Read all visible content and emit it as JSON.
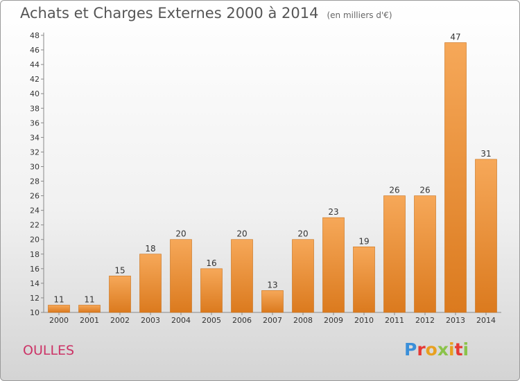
{
  "header": {
    "title": "Achats et Charges Externes 2000 à 2014",
    "unit": "(en milliers d'€)"
  },
  "footer": {
    "commune": "OULLES",
    "logo_text": "Proxiti"
  },
  "colors": {
    "bar_top": "#f6a859",
    "bar_bottom": "#db7a1e",
    "axis": "#888888",
    "label": "#333333"
  },
  "chart_data": {
    "type": "bar",
    "title": "Achats et Charges Externes 2000 à 2014",
    "categories": [
      "2000",
      "2001",
      "2002",
      "2003",
      "2004",
      "2005",
      "2006",
      "2007",
      "2008",
      "2009",
      "2010",
      "2011",
      "2012",
      "2013",
      "2014"
    ],
    "values": [
      11,
      11,
      15,
      18,
      20,
      16,
      20,
      13,
      20,
      23,
      19,
      26,
      26,
      47,
      31
    ],
    "xlabel": "",
    "ylabel": "",
    "ylim": [
      10,
      48
    ],
    "yticks": [
      10,
      12,
      14,
      16,
      18,
      20,
      22,
      24,
      26,
      28,
      30,
      32,
      34,
      36,
      38,
      40,
      42,
      44,
      46,
      48
    ],
    "grid": false,
    "legend": "none"
  }
}
